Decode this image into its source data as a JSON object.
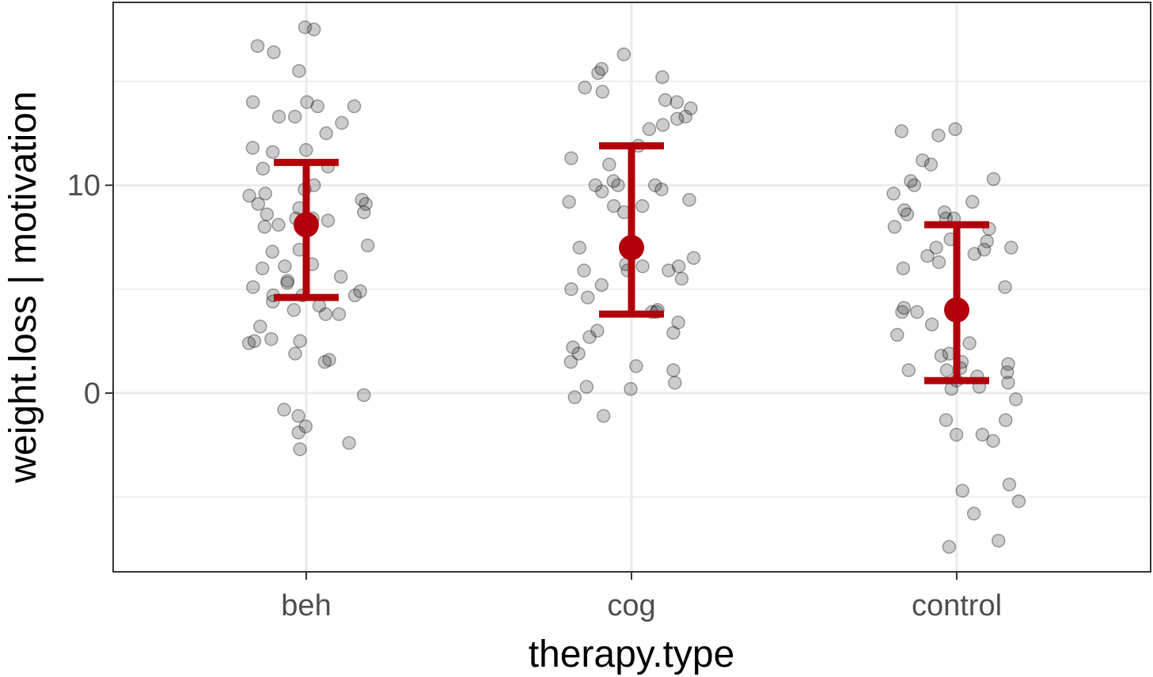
{
  "chart_data": {
    "type": "scatter",
    "xlabel": "therapy.type",
    "ylabel": "weight.loss | motivation",
    "categories": [
      "beh",
      "cog",
      "control"
    ],
    "ylim": [
      -8.6,
      18.8
    ],
    "y_ticks": [
      0,
      10
    ],
    "y_tick_labels": [
      "0",
      "10"
    ],
    "grid": true,
    "point_color": "#000000",
    "point_opacity": 0.2,
    "summary_color": "#b2000b",
    "summary": [
      {
        "category": "beh",
        "mean": 8.1,
        "lower": 4.6,
        "upper": 11.1
      },
      {
        "category": "cog",
        "mean": 7.0,
        "lower": 3.8,
        "upper": 11.9
      },
      {
        "category": "control",
        "mean": 4.0,
        "lower": 0.6,
        "upper": 8.1
      }
    ],
    "points": [
      {
        "category": "beh",
        "values": [
          17.6,
          17.5,
          16.7,
          16.4,
          15.5,
          14.0,
          14.0,
          13.8,
          13.8,
          13.3,
          13.3,
          13.0,
          12.5,
          11.8,
          11.7,
          11.6,
          10.9,
          10.8,
          10.0,
          9.8,
          9.6,
          9.5,
          9.3,
          9.1,
          9.1,
          8.9,
          8.7,
          8.6,
          8.4,
          8.4,
          8.3,
          8.1,
          8.0,
          7.1,
          6.9,
          6.8,
          6.2,
          6.1,
          6.0,
          5.6,
          5.4,
          5.3,
          5.1,
          4.9,
          4.7,
          4.7,
          4.7,
          4.4,
          4.2,
          4.0,
          3.8,
          3.8,
          3.2,
          2.6,
          2.5,
          2.5,
          2.4,
          1.9,
          1.6,
          1.5,
          -0.1,
          -0.8,
          -1.1,
          -1.6,
          -1.9,
          -2.4,
          -2.7
        ]
      },
      {
        "category": "cog",
        "values": [
          16.3,
          15.6,
          15.4,
          15.2,
          14.7,
          14.5,
          14.1,
          14.0,
          13.7,
          13.3,
          13.2,
          12.9,
          12.7,
          11.9,
          11.3,
          11.0,
          10.2,
          10.0,
          10.0,
          10.0,
          9.8,
          9.7,
          9.3,
          9.2,
          9.0,
          9.0,
          8.7,
          7.0,
          6.5,
          6.2,
          6.1,
          6.1,
          5.9,
          5.9,
          5.9,
          5.5,
          5.2,
          5.0,
          4.6,
          4.0,
          3.9,
          3.9,
          3.4,
          3.0,
          2.9,
          2.7,
          2.2,
          1.9,
          1.5,
          1.3,
          1.1,
          0.5,
          0.3,
          0.2,
          -0.2,
          -1.1
        ]
      },
      {
        "category": "control",
        "values": [
          12.7,
          12.6,
          12.4,
          11.2,
          11.0,
          10.3,
          10.2,
          10.0,
          9.6,
          9.2,
          8.8,
          8.7,
          8.6,
          8.4,
          8.4,
          8.0,
          7.9,
          7.4,
          7.3,
          7.0,
          7.0,
          6.9,
          6.7,
          6.6,
          6.3,
          6.0,
          5.1,
          4.1,
          3.9,
          3.9,
          3.3,
          2.8,
          2.4,
          1.9,
          1.8,
          1.5,
          1.4,
          1.2,
          1.1,
          1.1,
          1.0,
          0.8,
          0.6,
          0.5,
          0.3,
          0.2,
          -0.3,
          -1.3,
          -1.3,
          -2.0,
          -2.0,
          -2.3,
          -4.4,
          -4.7,
          -5.2,
          -5.8,
          -7.1,
          -7.4
        ]
      }
    ]
  }
}
